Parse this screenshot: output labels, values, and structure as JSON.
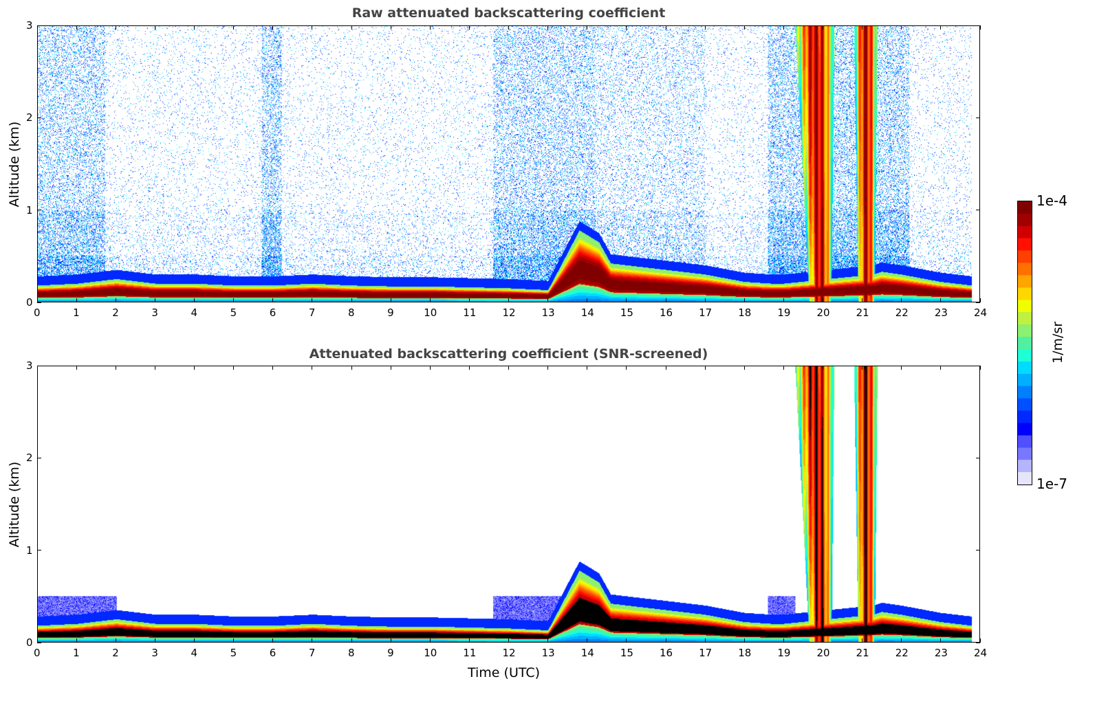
{
  "chart_data": [
    {
      "type": "heatmap",
      "title": "Raw attenuated backscattering coefficient",
      "xlabel": "",
      "ylabel": "Altitude (km)",
      "xlim": [
        0,
        24
      ],
      "ylim": [
        0,
        3
      ],
      "xticks": [
        0,
        1,
        2,
        3,
        4,
        5,
        6,
        7,
        8,
        9,
        10,
        11,
        12,
        13,
        14,
        15,
        16,
        17,
        18,
        19,
        20,
        21,
        22,
        23,
        24
      ],
      "yticks": [
        0,
        1,
        2,
        3
      ],
      "screened": false
    },
    {
      "type": "heatmap",
      "title": "Attenuated backscattering coefficient (SNR-screened)",
      "xlabel": "Time (UTC)",
      "ylabel": "Altitude (km)",
      "xlim": [
        0,
        24
      ],
      "ylim": [
        0,
        3
      ],
      "xticks": [
        0,
        1,
        2,
        3,
        4,
        5,
        6,
        7,
        8,
        9,
        10,
        11,
        12,
        13,
        14,
        15,
        16,
        17,
        18,
        19,
        20,
        21,
        22,
        23,
        24
      ],
      "yticks": [
        0,
        1,
        2,
        3
      ],
      "screened": true
    }
  ],
  "features": {
    "layer_top_km": {
      "time_h": [
        0,
        1,
        2,
        3,
        4,
        5,
        6,
        7,
        8,
        9,
        10,
        11,
        12,
        13,
        13.8,
        14.3,
        14.6,
        15,
        16,
        17,
        18,
        18.7,
        19,
        21.3,
        21.5,
        22,
        23,
        23.8
      ],
      "alt_km": [
        0.18,
        0.2,
        0.25,
        0.2,
        0.2,
        0.18,
        0.18,
        0.2,
        0.18,
        0.17,
        0.17,
        0.16,
        0.15,
        0.13,
        0.78,
        0.65,
        0.42,
        0.4,
        0.35,
        0.3,
        0.22,
        0.2,
        0.2,
        0.3,
        0.33,
        0.3,
        0.22,
        0.18
      ]
    },
    "precip_columns_h": [
      [
        19.3,
        20.3
      ],
      [
        20.8,
        21.4
      ]
    ],
    "data_end_h": 23.8
  },
  "colorbar": {
    "label": "1/m/sr",
    "min_label": "1e-7",
    "max_label": "1e-4",
    "scale": "log",
    "vmin": 1e-07,
    "vmax": 0.0001,
    "colors": [
      "#e6e6fa",
      "#b4b4ff",
      "#7878ff",
      "#5050ff",
      "#0000ff",
      "#0028ff",
      "#0050ff",
      "#0080ff",
      "#00b0ff",
      "#00dcff",
      "#1effd6",
      "#50f0a0",
      "#8cf070",
      "#c0f040",
      "#f0ff00",
      "#ffd700",
      "#ffa500",
      "#ff7000",
      "#ff4000",
      "#ff1000",
      "#d00000",
      "#a00000",
      "#800000"
    ]
  }
}
